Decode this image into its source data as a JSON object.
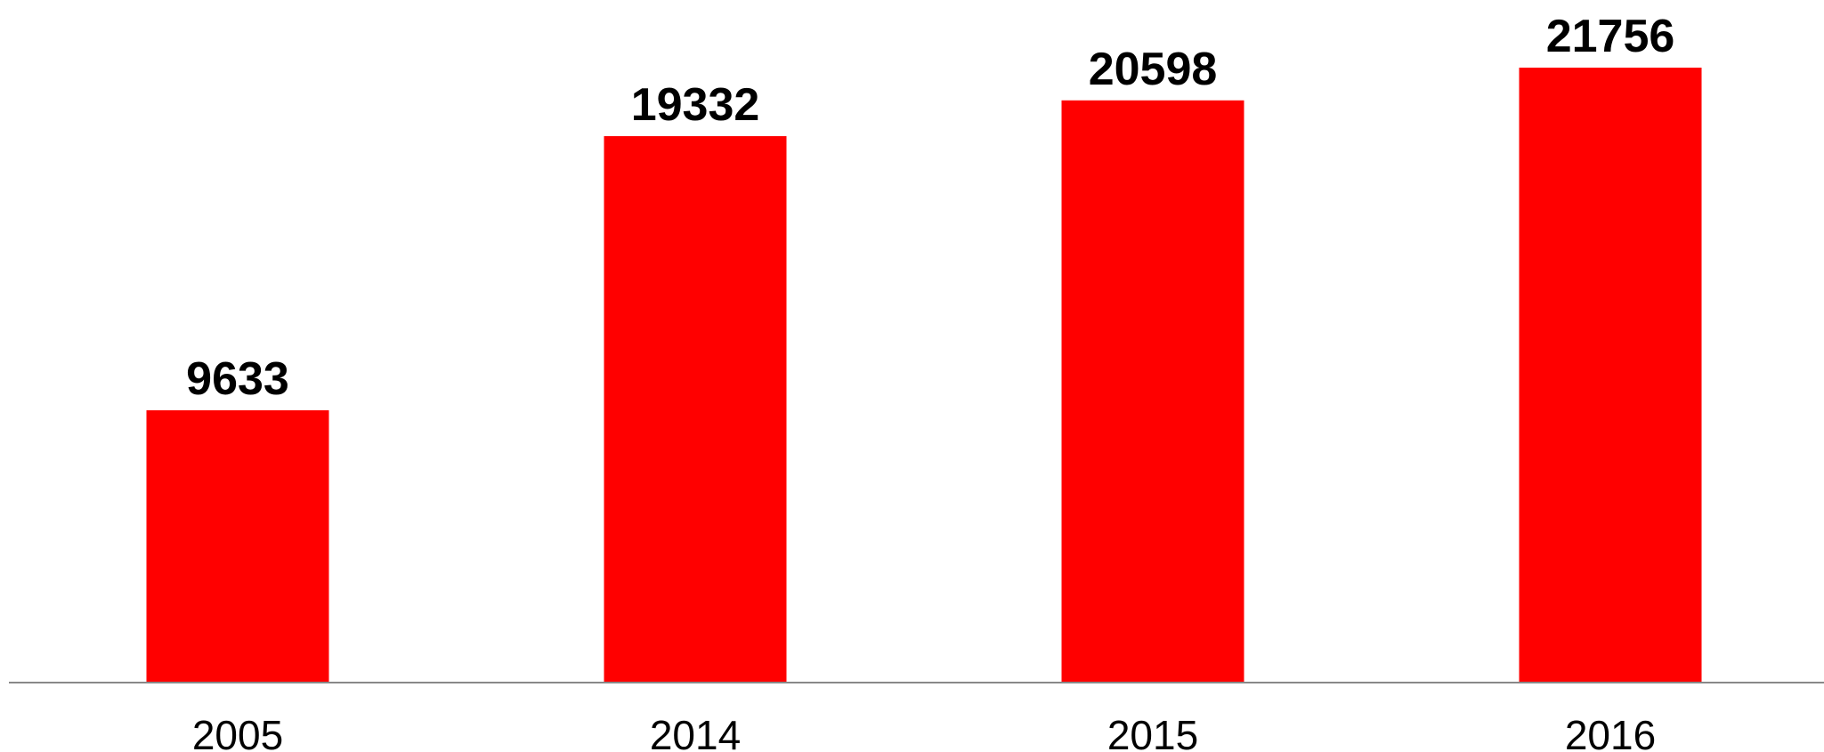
{
  "chart_data": {
    "type": "bar",
    "categories": [
      "2005",
      "2014",
      "2015",
      "2016"
    ],
    "values": [
      9633,
      19332,
      20598,
      21756
    ],
    "data_labels": [
      "9633",
      "19332",
      "20598",
      "21756"
    ],
    "title": "",
    "xlabel": "",
    "ylabel": "",
    "ylim": [
      0,
      22000
    ],
    "bar_color": "#ff0000",
    "axis_color": "#888888",
    "grid": false,
    "legend": "none"
  }
}
